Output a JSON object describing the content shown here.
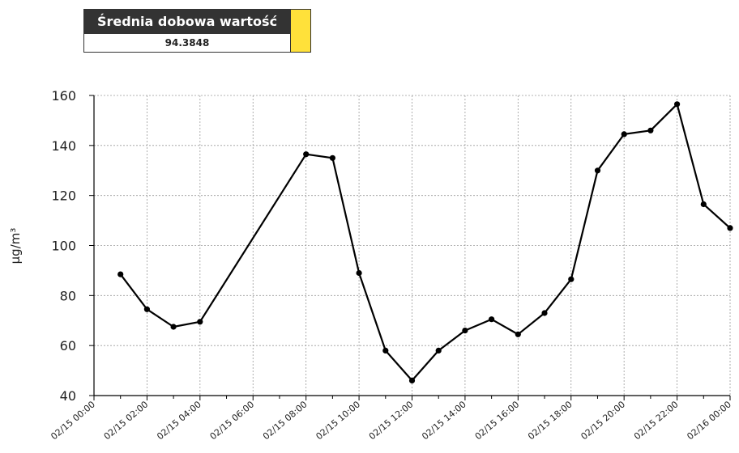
{
  "summary": {
    "label": "Średnia dobowa wartość",
    "value": "94.3848",
    "swatch_color": "#FFE13A"
  },
  "chart_data": {
    "type": "line",
    "title": "",
    "xlabel": "",
    "ylabel": "µg/m³",
    "ylim": [
      40,
      160
    ],
    "yticks": [
      40,
      60,
      80,
      100,
      120,
      140,
      160
    ],
    "xlim_hours": [
      0,
      24
    ],
    "xtick_labels": [
      "02/15 00:00",
      "02/15 02:00",
      "02/15 04:00",
      "02/15 06:00",
      "02/15 08:00",
      "02/15 10:00",
      "02/15 12:00",
      "02/15 14:00",
      "02/15 16:00",
      "02/15 18:00",
      "02/15 20:00",
      "02/15 22:00",
      "02/16 00:00"
    ],
    "grid": true,
    "line_color": "#000000",
    "x": [
      "02/15 01:00",
      "02/15 02:00",
      "02/15 03:00",
      "02/15 04:00",
      "02/15 08:00",
      "02/15 09:00",
      "02/15 10:00",
      "02/15 11:00",
      "02/15 12:00",
      "02/15 13:00",
      "02/15 14:00",
      "02/15 15:00",
      "02/15 16:00",
      "02/15 17:00",
      "02/15 18:00",
      "02/15 19:00",
      "02/15 20:00",
      "02/15 21:00",
      "02/15 22:00",
      "02/15 23:00",
      "02/16 00:00"
    ],
    "values": [
      88.5,
      74.5,
      67.5,
      69.5,
      136.5,
      135,
      89,
      58,
      46,
      58,
      66,
      70.5,
      64.5,
      73,
      86.5,
      130,
      144.5,
      146,
      156.5,
      116.5,
      107
    ]
  }
}
